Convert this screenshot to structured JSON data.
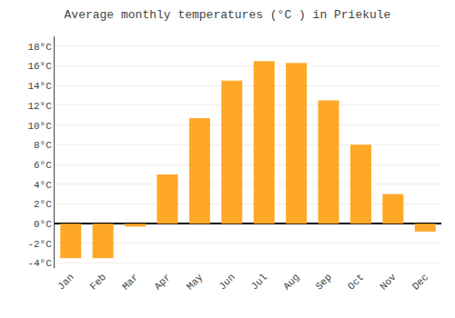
{
  "chart_data": {
    "type": "bar",
    "title": "Average monthly temperatures (°C ) in Priekule",
    "categories": [
      "Jan",
      "Feb",
      "Mar",
      "Apr",
      "May",
      "Jun",
      "Jul",
      "Aug",
      "Sep",
      "Oct",
      "Nov",
      "Dec"
    ],
    "values": [
      -3.5,
      -3.5,
      -0.3,
      5.0,
      10.7,
      14.5,
      16.5,
      16.3,
      12.5,
      8.0,
      3.0,
      -0.8
    ],
    "color": "#FFA828",
    "ylim": [
      -4.5,
      19.0
    ],
    "yticks": [
      {
        "value": -4,
        "label": "-4°C"
      },
      {
        "value": -2,
        "label": "-2°C"
      },
      {
        "value": 0,
        "label": "0°C"
      },
      {
        "value": 2,
        "label": "2°C"
      },
      {
        "value": 4,
        "label": "4°C"
      },
      {
        "value": 6,
        "label": "6°C"
      },
      {
        "value": 8,
        "label": "8°C"
      },
      {
        "value": 10,
        "label": "10°C"
      },
      {
        "value": 12,
        "label": "12°C"
      },
      {
        "value": 14,
        "label": "14°C"
      },
      {
        "value": 16,
        "label": "16°C"
      },
      {
        "value": 18,
        "label": "18°C"
      }
    ],
    "grid": true
  }
}
